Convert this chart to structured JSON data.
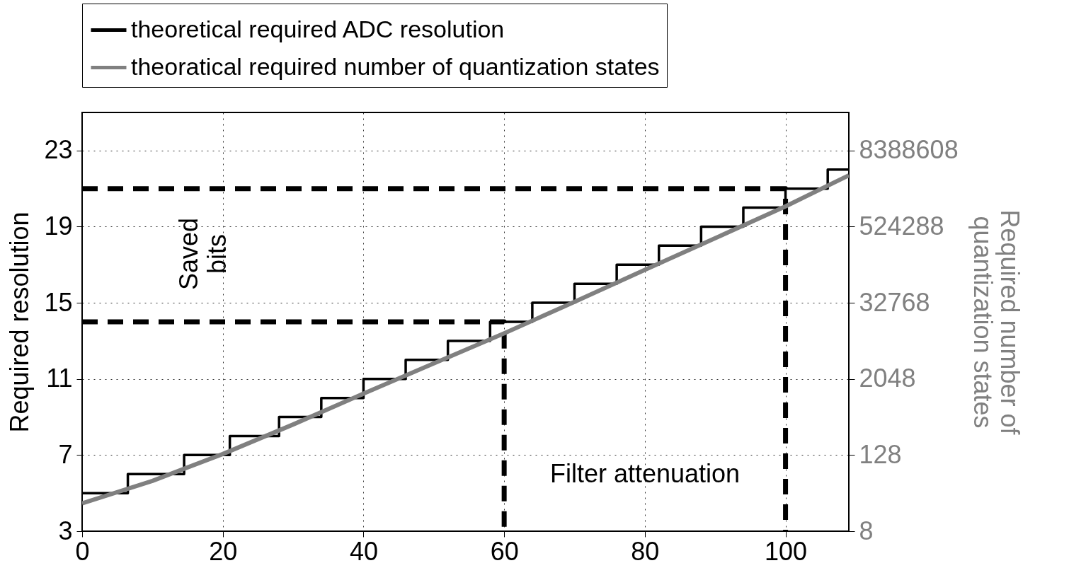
{
  "chart_data": {
    "type": "step",
    "xlabel": null,
    "ylabel": "Required resolution",
    "y2label": "Required number of quantization states",
    "xlim": [
      0,
      109
    ],
    "xticks": [
      0,
      20,
      40,
      60,
      80,
      100
    ],
    "ylim": [
      3,
      25
    ],
    "yticks": [
      3,
      7,
      11,
      15,
      19,
      23
    ],
    "y2lim": [
      8,
      33554432
    ],
    "y2ticks": [
      8,
      128,
      2048,
      32768,
      524288,
      8388608
    ],
    "log": "y2",
    "grid": true,
    "legend": "top",
    "marker": "none",
    "series": [
      {
        "name": "theoretical required ADC resolution",
        "color": "#000000",
        "x": [
          0,
          6.5,
          14.5,
          21,
          28,
          34,
          40,
          46,
          52,
          58,
          64,
          70,
          76,
          82,
          88,
          94,
          100,
          106,
          109
        ],
        "values": [
          5,
          6,
          7,
          8,
          9,
          10,
          11,
          12,
          13,
          14,
          15,
          16,
          17,
          18,
          19,
          20,
          21,
          22,
          22
        ]
      },
      {
        "name": "theoratical required number of quantization states",
        "type": "line",
        "axis": "y2",
        "color": "#808080",
        "x": [
          0,
          10,
          20,
          30,
          40,
          50,
          60,
          70,
          80,
          90,
          100,
          109
        ],
        "values": [
          22,
          50,
          133,
          390,
          1200,
          3600,
          10800,
          34000,
          109000,
          345000,
          1100000,
          3400000
        ]
      },
      {
        "type": "line",
        "line_style": "dashed",
        "color": "#000000",
        "x": [
          0,
          100,
          100
        ],
        "values": [
          21,
          21,
          3
        ]
      },
      {
        "type": "line",
        "line_style": "dashed",
        "color": "#000000",
        "x": [
          0,
          60,
          60
        ],
        "values": [
          14,
          14,
          3
        ]
      }
    ],
    "annotations": [
      "Saved bits",
      "Filter attenuation"
    ]
  }
}
